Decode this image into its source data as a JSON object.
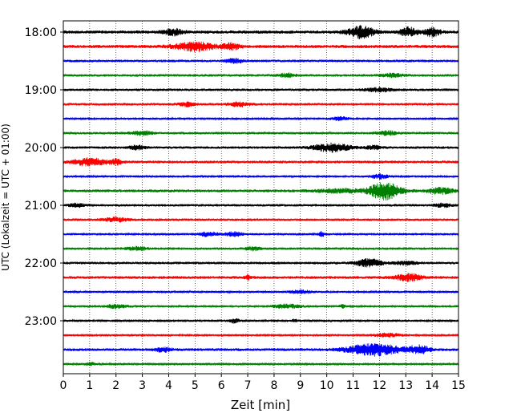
{
  "chart_data": {
    "type": "line",
    "title": "",
    "xlabel": "Zeit  [min]",
    "ylabel": "UTC (Lokalzeit = UTC + 01:00)",
    "xlim": [
      0,
      15
    ],
    "x_ticks": [
      "0",
      "1",
      "2",
      "3",
      "4",
      "5",
      "6",
      "7",
      "8",
      "9",
      "10",
      "11",
      "12",
      "13",
      "14",
      "15"
    ],
    "y_tick_labels": [
      "18:00",
      "19:00",
      "20:00",
      "21:00",
      "22:00",
      "23:00"
    ],
    "grid": "vertical-dotted",
    "colors": [
      "#000000",
      "#ff0000",
      "#0000ff",
      "#008000"
    ],
    "traces": [
      {
        "time": "18:00",
        "color": "#000000",
        "amp": 0.28,
        "events": [
          {
            "t": 4.2,
            "a": 0.5,
            "w": 0.4
          },
          {
            "t": 11.3,
            "a": 1.0,
            "w": 0.5
          },
          {
            "t": 13.1,
            "a": 0.8,
            "w": 0.3
          },
          {
            "t": 14.0,
            "a": 0.7,
            "w": 0.3
          }
        ]
      },
      {
        "time": "18:15",
        "color": "#ff0000",
        "amp": 0.28,
        "events": [
          {
            "t": 5.0,
            "a": 0.7,
            "w": 0.8
          },
          {
            "t": 6.4,
            "a": 0.5,
            "w": 0.3
          }
        ]
      },
      {
        "time": "18:30",
        "color": "#0000ff",
        "amp": 0.22,
        "events": [
          {
            "t": 6.5,
            "a": 0.4,
            "w": 0.3
          }
        ]
      },
      {
        "time": "18:45",
        "color": "#008000",
        "amp": 0.22,
        "events": [
          {
            "t": 8.5,
            "a": 0.35,
            "w": 0.3
          },
          {
            "t": 12.5,
            "a": 0.3,
            "w": 0.4
          }
        ]
      },
      {
        "time": "19:00",
        "color": "#000000",
        "amp": 0.22,
        "events": [
          {
            "t": 12.0,
            "a": 0.3,
            "w": 0.5
          }
        ]
      },
      {
        "time": "19:15",
        "color": "#ff0000",
        "amp": 0.22,
        "events": [
          {
            "t": 4.7,
            "a": 0.35,
            "w": 0.3
          },
          {
            "t": 6.7,
            "a": 0.4,
            "w": 0.4
          }
        ]
      },
      {
        "time": "19:30",
        "color": "#0000ff",
        "amp": 0.18,
        "events": [
          {
            "t": 10.5,
            "a": 0.3,
            "w": 0.3
          }
        ]
      },
      {
        "time": "19:45",
        "color": "#008000",
        "amp": 0.2,
        "events": [
          {
            "t": 3.0,
            "a": 0.35,
            "w": 0.4
          },
          {
            "t": 12.3,
            "a": 0.35,
            "w": 0.4
          }
        ]
      },
      {
        "time": "20:00",
        "color": "#000000",
        "amp": 0.22,
        "events": [
          {
            "t": 2.8,
            "a": 0.35,
            "w": 0.3
          },
          {
            "t": 10.2,
            "a": 0.7,
            "w": 0.7
          },
          {
            "t": 11.8,
            "a": 0.3,
            "w": 0.3
          }
        ]
      },
      {
        "time": "20:15",
        "color": "#ff0000",
        "amp": 0.25,
        "events": [
          {
            "t": 1.0,
            "a": 0.6,
            "w": 0.6
          },
          {
            "t": 2.0,
            "a": 0.5,
            "w": 0.2
          }
        ]
      },
      {
        "time": "20:30",
        "color": "#0000ff",
        "amp": 0.18,
        "events": [
          {
            "t": 12.0,
            "a": 0.4,
            "w": 0.3
          }
        ]
      },
      {
        "time": "20:45",
        "color": "#008000",
        "amp": 0.25,
        "events": [
          {
            "t": 12.2,
            "a": 1.5,
            "w": 0.6
          },
          {
            "t": 14.3,
            "a": 0.5,
            "w": 0.5
          },
          {
            "t": 10.5,
            "a": 0.3,
            "w": 0.8
          }
        ]
      },
      {
        "time": "21:00",
        "color": "#000000",
        "amp": 0.22,
        "events": [
          {
            "t": 0.5,
            "a": 0.3,
            "w": 0.3
          },
          {
            "t": 14.4,
            "a": 0.3,
            "w": 0.3
          }
        ]
      },
      {
        "time": "21:15",
        "color": "#ff0000",
        "amp": 0.2,
        "events": [
          {
            "t": 2.0,
            "a": 0.35,
            "w": 0.5
          }
        ]
      },
      {
        "time": "21:30",
        "color": "#0000ff",
        "amp": 0.2,
        "events": [
          {
            "t": 5.5,
            "a": 0.35,
            "w": 0.4
          },
          {
            "t": 6.5,
            "a": 0.4,
            "w": 0.3
          },
          {
            "t": 9.8,
            "a": 0.5,
            "w": 0.1
          }
        ]
      },
      {
        "time": "21:45",
        "color": "#008000",
        "amp": 0.2,
        "events": [
          {
            "t": 2.8,
            "a": 0.3,
            "w": 0.4
          },
          {
            "t": 7.2,
            "a": 0.3,
            "w": 0.3
          }
        ]
      },
      {
        "time": "22:00",
        "color": "#000000",
        "amp": 0.22,
        "events": [
          {
            "t": 11.6,
            "a": 0.7,
            "w": 0.5
          },
          {
            "t": 13.0,
            "a": 0.3,
            "w": 0.4
          }
        ]
      },
      {
        "time": "22:15",
        "color": "#ff0000",
        "amp": 0.25,
        "events": [
          {
            "t": 13.1,
            "a": 0.6,
            "w": 0.5
          },
          {
            "t": 7.0,
            "a": 0.4,
            "w": 0.1
          }
        ]
      },
      {
        "time": "22:30",
        "color": "#0000ff",
        "amp": 0.18,
        "events": [
          {
            "t": 9.0,
            "a": 0.3,
            "w": 0.4
          }
        ]
      },
      {
        "time": "22:45",
        "color": "#008000",
        "amp": 0.18,
        "events": [
          {
            "t": 2.0,
            "a": 0.3,
            "w": 0.4
          },
          {
            "t": 8.5,
            "a": 0.35,
            "w": 0.5
          },
          {
            "t": 10.6,
            "a": 0.3,
            "w": 0.1
          }
        ]
      },
      {
        "time": "23:00",
        "color": "#000000",
        "amp": 0.18,
        "events": [
          {
            "t": 6.5,
            "a": 0.35,
            "w": 0.2
          },
          {
            "t": 8.8,
            "a": 0.3,
            "w": 0.1
          }
        ]
      },
      {
        "time": "23:15",
        "color": "#ff0000",
        "amp": 0.18,
        "events": [
          {
            "t": 12.3,
            "a": 0.3,
            "w": 0.5
          }
        ]
      },
      {
        "time": "23:30",
        "color": "#0000ff",
        "amp": 0.25,
        "events": [
          {
            "t": 11.8,
            "a": 1.0,
            "w": 1.0
          },
          {
            "t": 13.5,
            "a": 0.7,
            "w": 0.4
          },
          {
            "t": 3.8,
            "a": 0.35,
            "w": 0.3
          }
        ]
      },
      {
        "time": "23:45",
        "color": "#008000",
        "amp": 0.16,
        "events": [
          {
            "t": 1.0,
            "a": 0.25,
            "w": 0.3
          }
        ]
      }
    ]
  }
}
